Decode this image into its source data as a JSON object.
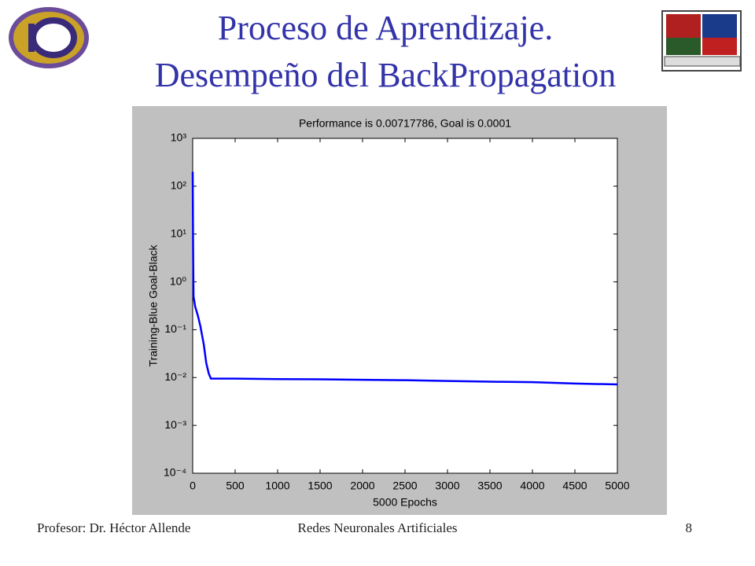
{
  "slide": {
    "title_line1": "Proceso de Aprendizaje.",
    "title_line2": "Desempeño del BackPropagation",
    "footer_left": "Profesor: Dr. Héctor Allende",
    "footer_center": "Redes Neuronales Artificiales",
    "page_number": "8"
  },
  "chart_data": {
    "type": "line",
    "title": "Performance is 0.00717786, Goal is 0.0001",
    "x_label": "5000 Epochs",
    "y_label": "Training-Blue  Goal-Black",
    "series": [
      {
        "color": "#0000ff",
        "x": [
          0,
          5,
          10,
          30,
          60,
          90,
          130,
          160,
          190,
          215,
          260,
          500,
          1000,
          1500,
          2000,
          2500,
          3000,
          3500,
          4000,
          4500,
          5000
        ],
        "values": [
          200,
          5,
          0.5,
          0.3,
          0.2,
          0.12,
          0.05,
          0.02,
          0.012,
          0.0095,
          0.0095,
          0.0095,
          0.0093,
          0.0092,
          0.009,
          0.0088,
          0.0085,
          0.0082,
          0.008,
          0.0075,
          0.00718
        ]
      }
    ],
    "xlim": [
      0,
      5000
    ],
    "xticks": [
      0,
      500,
      1000,
      1500,
      2000,
      2500,
      3000,
      3500,
      4000,
      4500,
      5000
    ],
    "ylim": [
      0.0001,
      1000
    ],
    "log_y": true,
    "yticks": [
      {
        "value": 0.0001,
        "label": "10⁻⁴"
      },
      {
        "value": 0.001,
        "label": "10⁻³"
      },
      {
        "value": 0.01,
        "label": "10⁻²"
      },
      {
        "value": 0.1,
        "label": "10⁻¹"
      },
      {
        "value": 1,
        "label": "10⁰"
      },
      {
        "value": 10,
        "label": "10¹"
      },
      {
        "value": 100,
        "label": "10²"
      },
      {
        "value": 1000,
        "label": "10³"
      }
    ],
    "grid": false
  }
}
